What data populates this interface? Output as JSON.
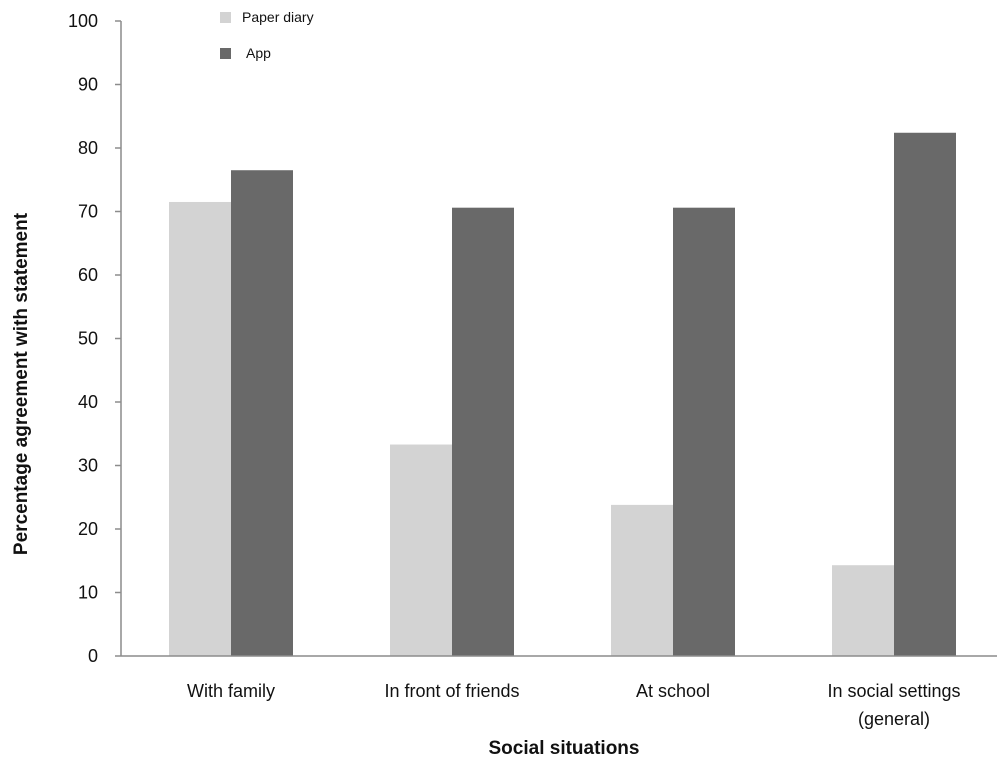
{
  "chart_data": {
    "type": "bar",
    "title": "",
    "xlabel": "Social situations",
    "ylabel": "Percentage agreement with statement",
    "categories": [
      [
        "With family"
      ],
      [
        "In front of friends"
      ],
      [
        "At school"
      ],
      [
        "In social settings",
        "(general)"
      ]
    ],
    "series": [
      {
        "name": "Paper diary",
        "color": "#d3d3d3",
        "values": [
          71.5,
          33.3,
          23.8,
          14.3
        ]
      },
      {
        "name": "App",
        "color": "#696969",
        "values": [
          76.5,
          70.6,
          70.6,
          82.4
        ]
      }
    ],
    "ylim": [
      0,
      100
    ],
    "yticks": [
      0,
      10,
      20,
      30,
      40,
      50,
      60,
      70,
      80,
      90,
      100
    ],
    "grid": false,
    "legend_position": "top-left"
  }
}
